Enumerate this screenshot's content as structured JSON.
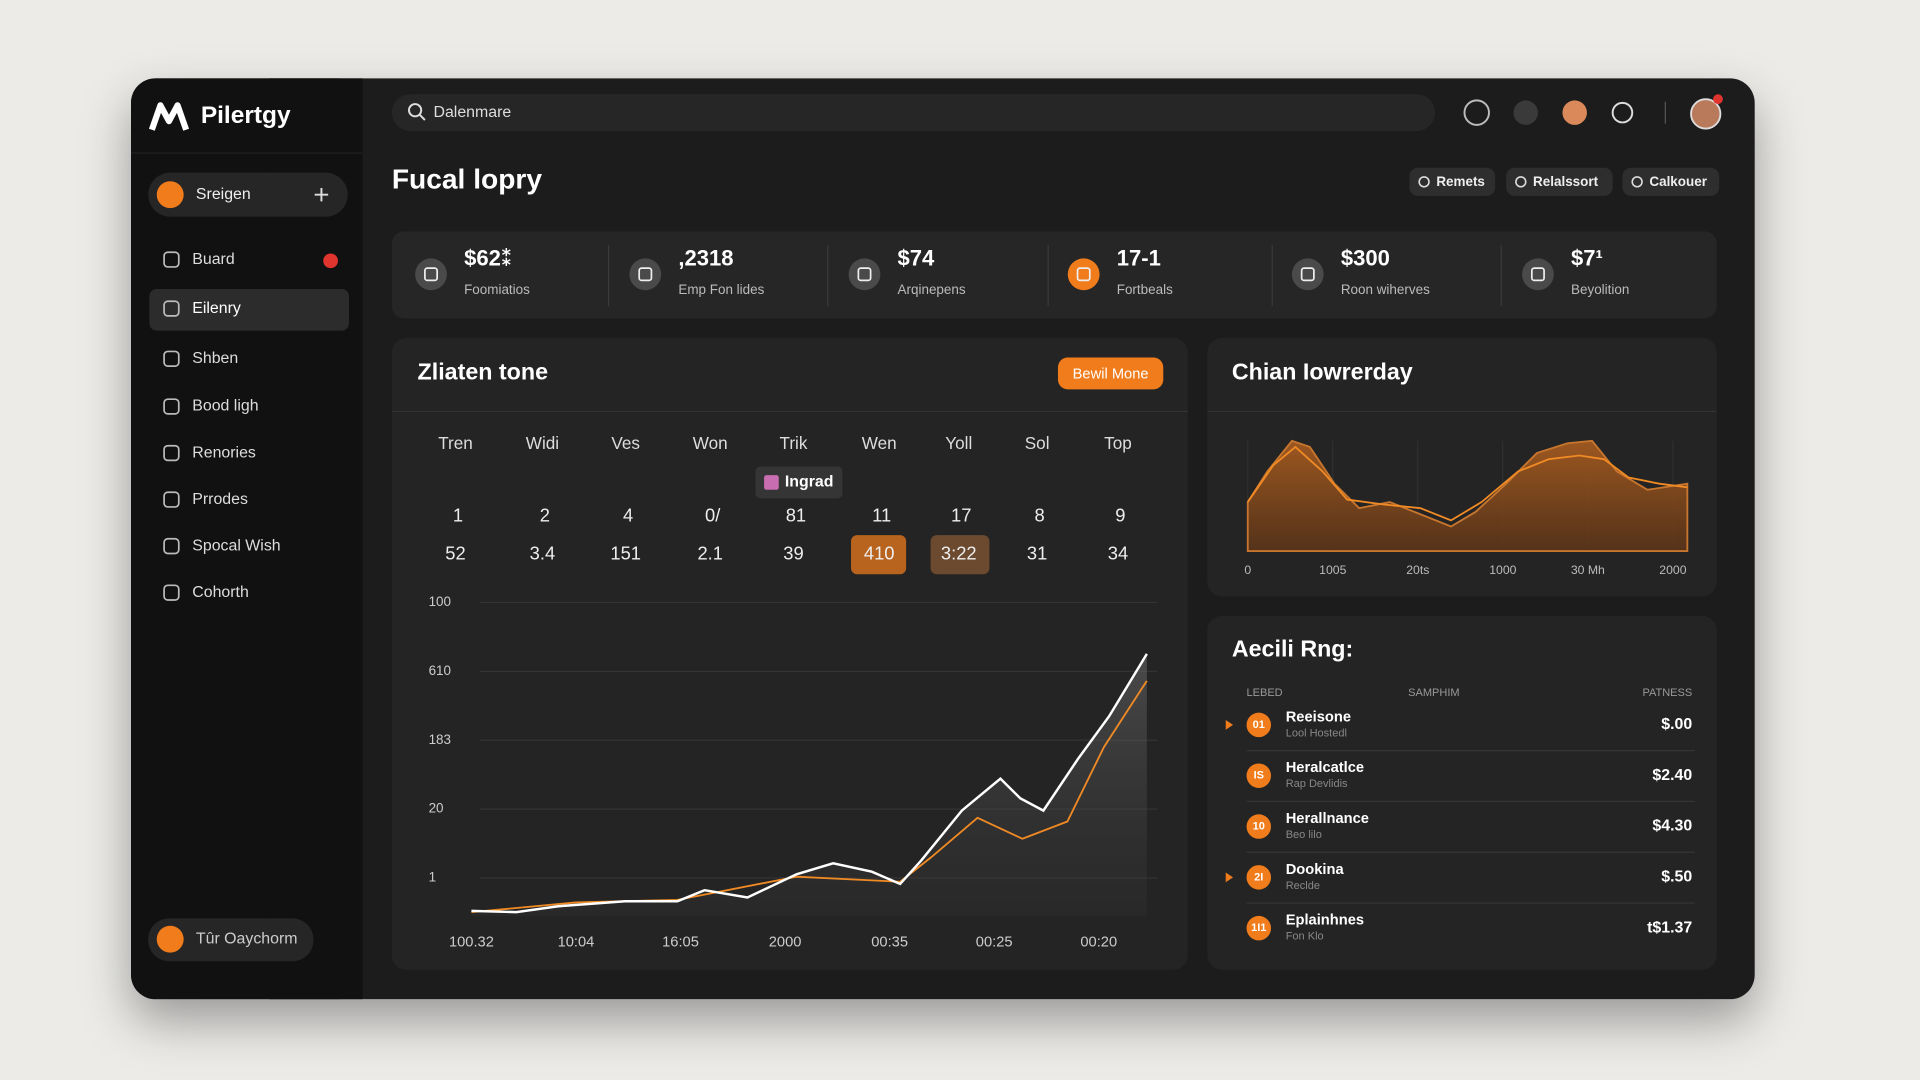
{
  "brand": "Pilertgy",
  "search": "Dalenmare",
  "sidebar": {
    "workspace": "Sreigen",
    "nav": [
      "Buard",
      "Eilenry",
      "Shben",
      "Bood ligh",
      "Renories",
      "Prrodes",
      "Spocal Wish",
      "Cohorth"
    ],
    "footer": "Tûr Oaychorm"
  },
  "page_title": "Fucal lopry",
  "actions": [
    "Remets",
    "Relalssort",
    "Calkouer"
  ],
  "stats": [
    {
      "value": "$62⁑",
      "label": "Foomiatios"
    },
    {
      "value": ",2318",
      "label": "Emp Fon lides"
    },
    {
      "value": "$74",
      "label": "Arqinepens"
    },
    {
      "value": "17-1",
      "label": "Fortbeals"
    },
    {
      "value": "$300",
      "label": "Roon wiherves"
    },
    {
      "value": "$7¹",
      "label": "Beyolition"
    }
  ],
  "activity": {
    "title": "Zliaten tone",
    "button": "Bewil Mone",
    "table": {
      "tag": "Ingrad",
      "headers": [
        "Tren",
        "Widi",
        "Ves",
        "Won",
        "Trik",
        "Wen",
        "Yoll",
        "Sol",
        "Top"
      ],
      "rows": [
        [
          "1",
          "2",
          "4",
          "0/",
          "81",
          "11",
          "17",
          "8",
          "9"
        ],
        [
          "52",
          "3.4",
          "151",
          "2.1",
          "39",
          "410",
          "3:22",
          "31",
          "34"
        ]
      ]
    },
    "chart": {
      "type": "line",
      "x_labels": [
        "100.32",
        "10:04",
        "16:05",
        "2000",
        "00:35",
        "00:25",
        "00:20"
      ],
      "y_labels": [
        "100",
        "610",
        "183",
        "20",
        "1"
      ],
      "xlim": [
        0,
        6.5
      ],
      "ylim": [
        0,
        100
      ],
      "series": [
        {
          "color": "#ffffff",
          "x": [
            0,
            0.43,
            0.83,
            1.47,
            1.97,
            2.23,
            2.64,
            3.11,
            3.46,
            3.83,
            4.1,
            4.3,
            4.69,
            5.06,
            5.25,
            5.47,
            5.8,
            6.1,
            6.46
          ],
          "values": [
            1.6,
            1.2,
            3.1,
            4.7,
            4.7,
            8.2,
            5.9,
            13.3,
            16.8,
            14.1,
            10.2,
            17.6,
            33.6,
            43.8,
            37.5,
            33.6,
            50,
            63.7,
            83.6
          ]
        },
        {
          "color": "#f08a24",
          "x": [
            0,
            1,
            1.97,
            3.11,
            4.1,
            4.4,
            4.84,
            5.27,
            5.7,
            6.05,
            6.46
          ],
          "values": [
            1.2,
            4.3,
            5.1,
            12.5,
            10.9,
            18.8,
            31.3,
            24.6,
            30.1,
            53.9,
            75
          ]
        }
      ]
    }
  },
  "trend": {
    "title": "Chian Iowrerday",
    "chart": {
      "type": "area",
      "x_labels": [
        "0",
        "1005",
        "20ts",
        "1000",
        "30 Mh",
        "2000"
      ],
      "xlim": [
        0,
        5.17
      ],
      "ylim": [
        0,
        100
      ],
      "series": [
        {
          "color": "#c8762e",
          "x": [
            0,
            0.23,
            0.52,
            0.73,
            1.02,
            1.31,
            1.67,
            2.03,
            2.39,
            2.68,
            3.04,
            3.4,
            3.76,
            4.05,
            4.34,
            4.7,
            5.17
          ],
          "values": [
            40,
            65,
            90,
            85,
            55,
            35,
            40,
            30,
            20,
            32,
            55,
            80,
            88,
            90,
            65,
            50,
            55
          ]
        },
        {
          "color": "#f08a24",
          "x": [
            0,
            0.3,
            0.56,
            0.88,
            1.17,
            1.6,
            2.03,
            2.39,
            2.75,
            3.18,
            3.54,
            3.9,
            4.19,
            4.48,
            4.84,
            5.17
          ],
          "values": [
            40,
            70,
            85,
            65,
            42,
            38,
            35,
            25,
            40,
            65,
            75,
            78,
            75,
            60,
            55,
            52
          ]
        }
      ]
    }
  },
  "list": {
    "title": "Aecili Rng:",
    "columns": [
      "LEBED",
      "SAMPHIM",
      "PATNESS"
    ],
    "rows": [
      {
        "badge": "01",
        "name": "Reeisone",
        "sub": "Lool Hostedl",
        "amount": "$.00"
      },
      {
        "badge": "IS",
        "name": "Heralcatlce",
        "sub": "Rap Devlidis",
        "amount": "$2.40"
      },
      {
        "badge": "10",
        "name": "Herallnance",
        "sub": "Beo lilo",
        "amount": "$4.30"
      },
      {
        "badge": "2I",
        "name": "Dookina",
        "sub": "Reclde",
        "amount": "$.50"
      },
      {
        "badge": "1I1",
        "name": "Eplainhnes",
        "sub": "Fon Klo",
        "amount": "t$1.37"
      }
    ]
  }
}
